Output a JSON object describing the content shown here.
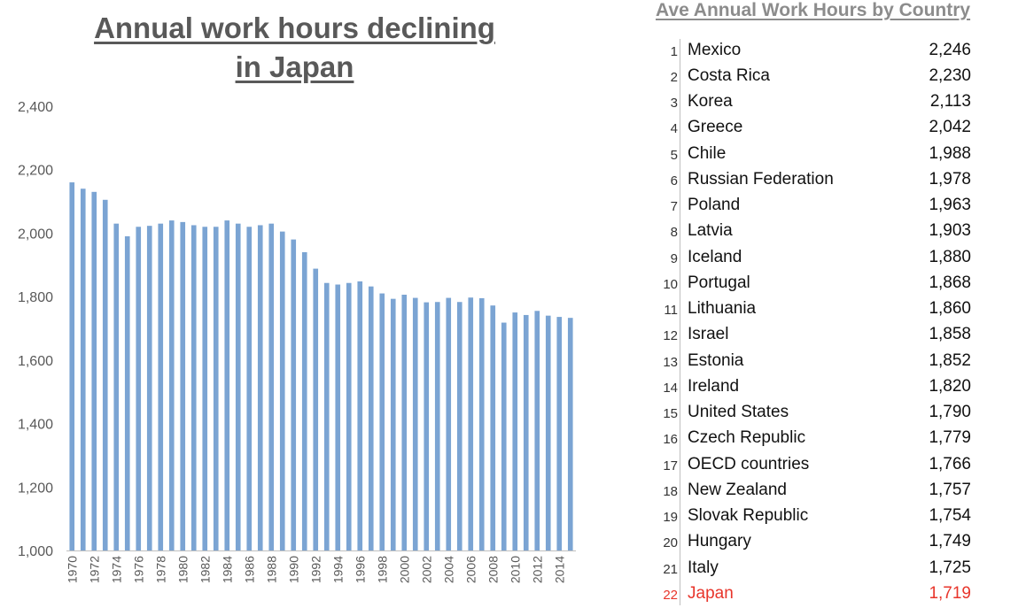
{
  "chart_data": {
    "type": "bar",
    "title": "Annual work hours declining in Japan",
    "title_lines": [
      "Annual work hours declining",
      "in Japan"
    ],
    "categories": [
      "1970",
      "1971",
      "1972",
      "1973",
      "1974",
      "1975",
      "1976",
      "1977",
      "1978",
      "1979",
      "1980",
      "1981",
      "1982",
      "1983",
      "1984",
      "1985",
      "1986",
      "1987",
      "1988",
      "1989",
      "1990",
      "1991",
      "1992",
      "1993",
      "1994",
      "1995",
      "1996",
      "1997",
      "1998",
      "1999",
      "2000",
      "2001",
      "2002",
      "2003",
      "2004",
      "2005",
      "2006",
      "2007",
      "2008",
      "2009",
      "2010",
      "2011",
      "2012",
      "2013",
      "2014",
      "2015"
    ],
    "x_tick_labels": [
      "1970",
      "1972",
      "1974",
      "1976",
      "1978",
      "1980",
      "1982",
      "1984",
      "1986",
      "1988",
      "1990",
      "1992",
      "1994",
      "1996",
      "1998",
      "2000",
      "2002",
      "2004",
      "2006",
      "2008",
      "2010",
      "2012",
      "2014"
    ],
    "values": [
      2160,
      2140,
      2130,
      2105,
      2030,
      1990,
      2020,
      2023,
      2030,
      2040,
      2035,
      2025,
      2020,
      2020,
      2040,
      2030,
      2020,
      2025,
      2030,
      2005,
      1980,
      1940,
      1888,
      1843,
      1838,
      1843,
      1848,
      1832,
      1810,
      1793,
      1806,
      1796,
      1782,
      1783,
      1796,
      1783,
      1797,
      1795,
      1772,
      1718,
      1750,
      1742,
      1755,
      1740,
      1736,
      1733
    ],
    "ylim": [
      1000,
      2400
    ],
    "y_ticks": [
      "1,000",
      "1,200",
      "1,400",
      "1,600",
      "1,800",
      "2,000",
      "2,200",
      "2,400"
    ],
    "bar_color": "#7ba4d3",
    "grid": false,
    "xlabel": "",
    "ylabel": ""
  },
  "ranking_table": {
    "title": "Ave Annual Work Hours by Country",
    "highlight_color": "#e8352b",
    "rows": [
      {
        "rank": "1",
        "country": "Mexico",
        "hours": "2,246"
      },
      {
        "rank": "2",
        "country": "Costa Rica",
        "hours": "2,230"
      },
      {
        "rank": "3",
        "country": "Korea",
        "hours": "2,113"
      },
      {
        "rank": "4",
        "country": "Greece",
        "hours": "2,042"
      },
      {
        "rank": "5",
        "country": "Chile",
        "hours": "1,988"
      },
      {
        "rank": "6",
        "country": "Russian Federation",
        "hours": "1,978"
      },
      {
        "rank": "7",
        "country": "Poland",
        "hours": "1,963"
      },
      {
        "rank": "8",
        "country": "Latvia",
        "hours": "1,903"
      },
      {
        "rank": "9",
        "country": "Iceland",
        "hours": "1,880"
      },
      {
        "rank": "10",
        "country": "Portugal",
        "hours": "1,868"
      },
      {
        "rank": "11",
        "country": "Lithuania",
        "hours": "1,860"
      },
      {
        "rank": "12",
        "country": "Israel",
        "hours": "1,858"
      },
      {
        "rank": "13",
        "country": "Estonia",
        "hours": "1,852"
      },
      {
        "rank": "14",
        "country": "Ireland",
        "hours": "1,820"
      },
      {
        "rank": "15",
        "country": "United States",
        "hours": "1,790"
      },
      {
        "rank": "16",
        "country": "Czech Republic",
        "hours": "1,779"
      },
      {
        "rank": "17",
        "country": "OECD countries",
        "hours": "1,766"
      },
      {
        "rank": "18",
        "country": "New Zealand",
        "hours": "1,757"
      },
      {
        "rank": "19",
        "country": "Slovak Republic",
        "hours": "1,754"
      },
      {
        "rank": "20",
        "country": "Hungary",
        "hours": "1,749"
      },
      {
        "rank": "21",
        "country": "Italy",
        "hours": "1,725"
      },
      {
        "rank": "22",
        "country": "Japan",
        "hours": "1,719",
        "highlight": true
      }
    ]
  }
}
